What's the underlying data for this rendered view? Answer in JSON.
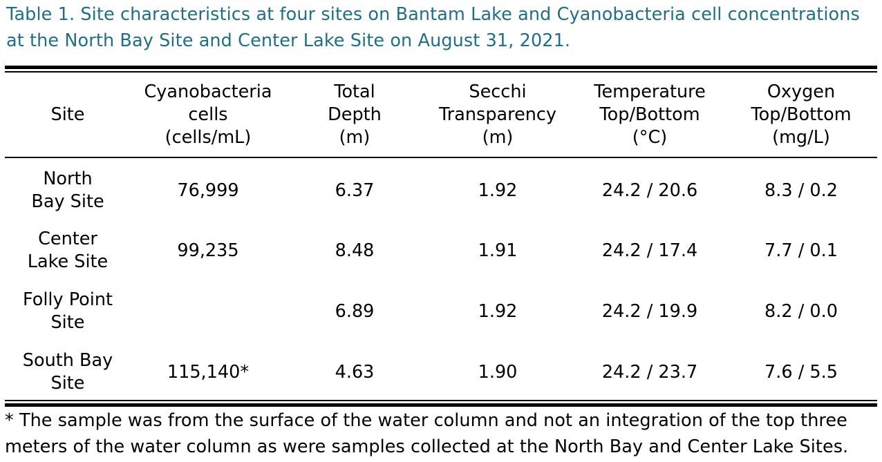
{
  "caption": {
    "line1": "Table 1. Site characteristics at four sites on Bantam Lake and Cyanobacteria cell concentrations",
    "line2": "at the North Bay Site and Center Lake Site on August 31, 2021.",
    "color": "#1f6f86"
  },
  "table": {
    "headers": [
      "Site",
      "Cyanobacteria\ncells\n(cells/mL)",
      "Total\nDepth\n(m)",
      "Secchi\nTransparency\n(m)",
      "Temperature\nTop/Bottom\n(°C)",
      "Oxygen\nTop/Bottom\n(mg/L)"
    ],
    "rows": [
      [
        "North\nBay Site",
        "76,999",
        "6.37",
        "1.92",
        "24.2 / 20.6",
        "8.3 / 0.2"
      ],
      [
        "Center\nLake Site",
        "99,235",
        "8.48",
        "1.91",
        "24.2 / 17.4",
        "7.7 / 0.1"
      ],
      [
        "Folly Point\nSite",
        "",
        "6.89",
        "1.92",
        "24.2 / 19.9",
        "8.2 / 0.0"
      ],
      [
        "South Bay\nSite",
        "115,140*",
        "4.63",
        "1.90",
        "24.2 / 23.7",
        "7.6 / 5.5"
      ]
    ]
  },
  "footnote": {
    "line1": "* The sample was from the surface of the water column and not an integration of the top three",
    "line2": "meters of the water column as were samples collected at the North Bay and Center Lake Sites."
  }
}
